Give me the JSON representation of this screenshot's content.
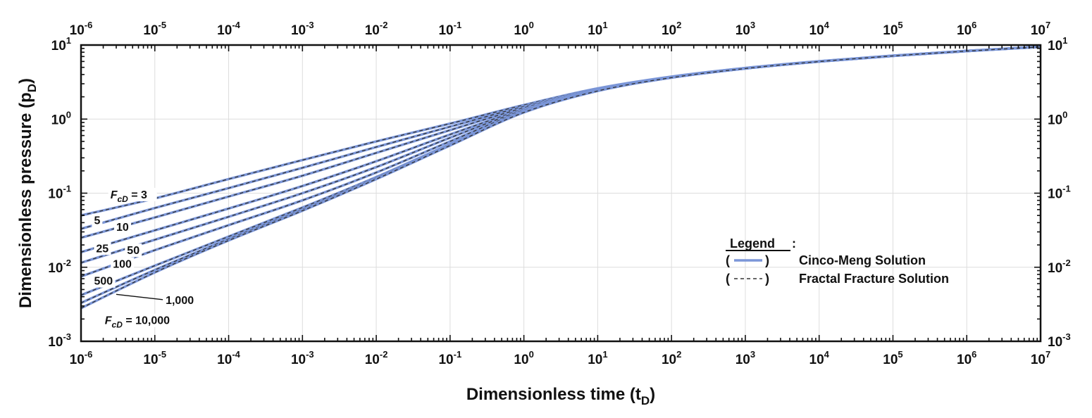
{
  "chart_data": {
    "type": "line",
    "title": "",
    "xlabel": {
      "main": "Dimensionless time (t",
      "sub": "D",
      "close": ")"
    },
    "ylabel": {
      "main": "Dimensionless pressure (p",
      "sub": "D",
      "close": ")"
    },
    "x_scale": "log",
    "y_scale": "log",
    "xlim": [
      1e-06,
      10000000.0
    ],
    "ylim": [
      0.001,
      10
    ],
    "x_ticks": [
      {
        "value": 1e-06,
        "base": "10",
        "exp": "-6"
      },
      {
        "value": 1e-05,
        "base": "10",
        "exp": "-5"
      },
      {
        "value": 0.0001,
        "base": "10",
        "exp": "-4"
      },
      {
        "value": 0.001,
        "base": "10",
        "exp": "-3"
      },
      {
        "value": 0.01,
        "base": "10",
        "exp": "-2"
      },
      {
        "value": 0.1,
        "base": "10",
        "exp": "-1"
      },
      {
        "value": 1.0,
        "base": "10",
        "exp": "0"
      },
      {
        "value": 10.0,
        "base": "10",
        "exp": "1"
      },
      {
        "value": 100.0,
        "base": "10",
        "exp": "2"
      },
      {
        "value": 1000.0,
        "base": "10",
        "exp": "3"
      },
      {
        "value": 10000.0,
        "base": "10",
        "exp": "4"
      },
      {
        "value": 100000.0,
        "base": "10",
        "exp": "5"
      },
      {
        "value": 1000000.0,
        "base": "10",
        "exp": "6"
      },
      {
        "value": 10000000.0,
        "base": "10",
        "exp": "7"
      }
    ],
    "y_ticks": [
      {
        "value": 0.001,
        "base": "10",
        "exp": "-3"
      },
      {
        "value": 0.01,
        "base": "10",
        "exp": "-2"
      },
      {
        "value": 0.1,
        "base": "10",
        "exp": "-1"
      },
      {
        "value": 1.0,
        "base": "10",
        "exp": "0"
      },
      {
        "value": 10.0,
        "base": "10",
        "exp": "1"
      }
    ],
    "grid": true,
    "series": [
      {
        "name": "FcD = 3",
        "label": "3",
        "points": [
          [
            1e-06,
            0.05
          ],
          [
            1e-05,
            0.085
          ],
          [
            0.0001,
            0.155
          ],
          [
            0.001,
            0.28
          ],
          [
            0.01,
            0.5
          ],
          [
            0.1,
            0.87
          ],
          [
            1,
            1.55
          ],
          [
            10,
            2.6
          ],
          [
            100,
            3.75
          ],
          [
            1000,
            4.9
          ],
          [
            10000,
            6.05
          ],
          [
            100000,
            7.2
          ],
          [
            1000000,
            8.35
          ],
          [
            10000000,
            9.5
          ]
        ]
      },
      {
        "name": "FcD = 5",
        "label": "5",
        "points": [
          [
            1e-06,
            0.033
          ],
          [
            1e-05,
            0.063
          ],
          [
            0.0001,
            0.117
          ],
          [
            0.001,
            0.22
          ],
          [
            0.01,
            0.42
          ],
          [
            0.1,
            0.79
          ],
          [
            1,
            1.48
          ],
          [
            10,
            2.55
          ],
          [
            100,
            3.72
          ],
          [
            1000,
            4.88
          ],
          [
            10000,
            6.03
          ],
          [
            100000,
            7.18
          ],
          [
            1000000,
            8.33
          ],
          [
            10000000,
            9.48
          ]
        ]
      },
      {
        "name": "FcD = 10",
        "label": "10",
        "points": [
          [
            1e-06,
            0.025
          ],
          [
            1e-05,
            0.047
          ],
          [
            0.0001,
            0.09
          ],
          [
            0.001,
            0.172
          ],
          [
            0.01,
            0.35
          ],
          [
            0.1,
            0.71
          ],
          [
            1,
            1.42
          ],
          [
            10,
            2.5
          ],
          [
            100,
            3.69
          ],
          [
            1000,
            4.86
          ],
          [
            10000,
            6.02
          ],
          [
            100000,
            7.17
          ],
          [
            1000000,
            8.32
          ],
          [
            10000000,
            9.47
          ]
        ]
      },
      {
        "name": "FcD = 25",
        "label": "25",
        "points": [
          [
            1e-06,
            0.016
          ],
          [
            1e-05,
            0.0315
          ],
          [
            0.0001,
            0.062
          ],
          [
            0.001,
            0.125
          ],
          [
            0.01,
            0.27
          ],
          [
            0.1,
            0.62
          ],
          [
            1,
            1.36
          ],
          [
            10,
            2.46
          ],
          [
            100,
            3.67
          ],
          [
            1000,
            4.85
          ],
          [
            10000,
            6.01
          ],
          [
            100000,
            7.16
          ],
          [
            1000000,
            8.31
          ],
          [
            10000000,
            9.46
          ]
        ]
      },
      {
        "name": "FcD = 50",
        "label": "50",
        "points": [
          [
            1e-06,
            0.0115
          ],
          [
            1e-05,
            0.0235
          ],
          [
            0.0001,
            0.048
          ],
          [
            0.001,
            0.1
          ],
          [
            0.01,
            0.225
          ],
          [
            0.1,
            0.56
          ],
          [
            1,
            1.32
          ],
          [
            10,
            2.44
          ],
          [
            100,
            3.66
          ],
          [
            1000,
            4.84
          ],
          [
            10000,
            6.0
          ],
          [
            100000,
            7.15
          ],
          [
            1000000,
            8.3
          ],
          [
            10000000,
            9.45
          ]
        ]
      },
      {
        "name": "FcD = 100",
        "label": "100",
        "points": [
          [
            1e-06,
            0.0075
          ],
          [
            1e-05,
            0.017
          ],
          [
            0.0001,
            0.037
          ],
          [
            0.001,
            0.08
          ],
          [
            0.01,
            0.19
          ],
          [
            0.1,
            0.5
          ],
          [
            1,
            1.28
          ],
          [
            10,
            2.42
          ],
          [
            100,
            3.65
          ],
          [
            1000,
            4.83
          ],
          [
            10000,
            5.99
          ],
          [
            100000,
            7.14
          ],
          [
            1000000,
            8.29
          ],
          [
            10000000,
            9.44
          ]
        ]
      },
      {
        "name": "FcD = 500",
        "label": "500",
        "points": [
          [
            1e-06,
            0.0042
          ],
          [
            1e-05,
            0.0105
          ],
          [
            0.0001,
            0.026
          ],
          [
            0.001,
            0.064
          ],
          [
            0.01,
            0.165
          ],
          [
            0.1,
            0.46
          ],
          [
            1,
            1.25
          ],
          [
            10,
            2.41
          ],
          [
            100,
            3.64
          ],
          [
            1000,
            4.82
          ],
          [
            10000,
            5.98
          ],
          [
            100000,
            7.13
          ],
          [
            1000000,
            8.28
          ],
          [
            10000000,
            9.43
          ]
        ]
      },
      {
        "name": "FcD = 1,000",
        "label": "1,000",
        "points": [
          [
            1e-06,
            0.0033
          ],
          [
            1e-05,
            0.0092
          ],
          [
            0.0001,
            0.024
          ],
          [
            0.001,
            0.06
          ],
          [
            0.01,
            0.16
          ],
          [
            0.1,
            0.45
          ],
          [
            1,
            1.24
          ],
          [
            10,
            2.4
          ],
          [
            100,
            3.63
          ],
          [
            1000,
            4.82
          ],
          [
            10000,
            5.98
          ],
          [
            100000,
            7.13
          ],
          [
            1000000,
            8.28
          ],
          [
            10000000,
            9.43
          ]
        ]
      },
      {
        "name": "FcD = 10,000",
        "label": "10,000",
        "points": [
          [
            1e-06,
            0.0028
          ],
          [
            1e-05,
            0.0085
          ],
          [
            0.0001,
            0.023
          ],
          [
            0.001,
            0.058
          ],
          [
            0.01,
            0.155
          ],
          [
            0.1,
            0.44
          ],
          [
            1,
            1.23
          ],
          [
            10,
            2.4
          ],
          [
            100,
            3.63
          ],
          [
            1000,
            4.82
          ],
          [
            10000,
            5.98
          ],
          [
            100000,
            7.13
          ],
          [
            1000000,
            8.28
          ],
          [
            10000000,
            9.43
          ]
        ]
      }
    ],
    "annotations": [
      {
        "text": "F",
        "sub": "cD",
        "suffix": " = 3",
        "t": 2.5e-06,
        "p": 0.085
      },
      {
        "text": "5",
        "t": 1.5e-06,
        "p": 0.038
      },
      {
        "text": "10",
        "t": 3e-06,
        "p": 0.031
      },
      {
        "text": "25",
        "t": 1.6e-06,
        "p": 0.016
      },
      {
        "text": "50",
        "t": 4.2e-06,
        "p": 0.015
      },
      {
        "text": "100",
        "t": 2.7e-06,
        "p": 0.0098
      },
      {
        "text": "500",
        "t": 1.5e-06,
        "p": 0.0058
      },
      {
        "text": "1,000",
        "t": 1.4e-05,
        "p": 0.0032,
        "leader_to": [
          3e-06,
          0.0043
        ]
      },
      {
        "text": "F",
        "sub": "cD",
        "suffix": " = 10,000",
        "t": 2.1e-06,
        "p": 0.0017
      }
    ],
    "legend": {
      "title": "Legend",
      "title_suffix": ":",
      "position": "center-right",
      "items": [
        {
          "symbol": "solid",
          "label": "Cinco-Meng Solution",
          "color": "#7b96d8"
        },
        {
          "symbol": "dashed",
          "label": "Fractal Fracture Solution",
          "color": "#333333"
        }
      ]
    },
    "colors": {
      "solid": "#7b96d8",
      "dashed": "#333333",
      "grid": "#dddddd",
      "axis": "#111111"
    }
  }
}
